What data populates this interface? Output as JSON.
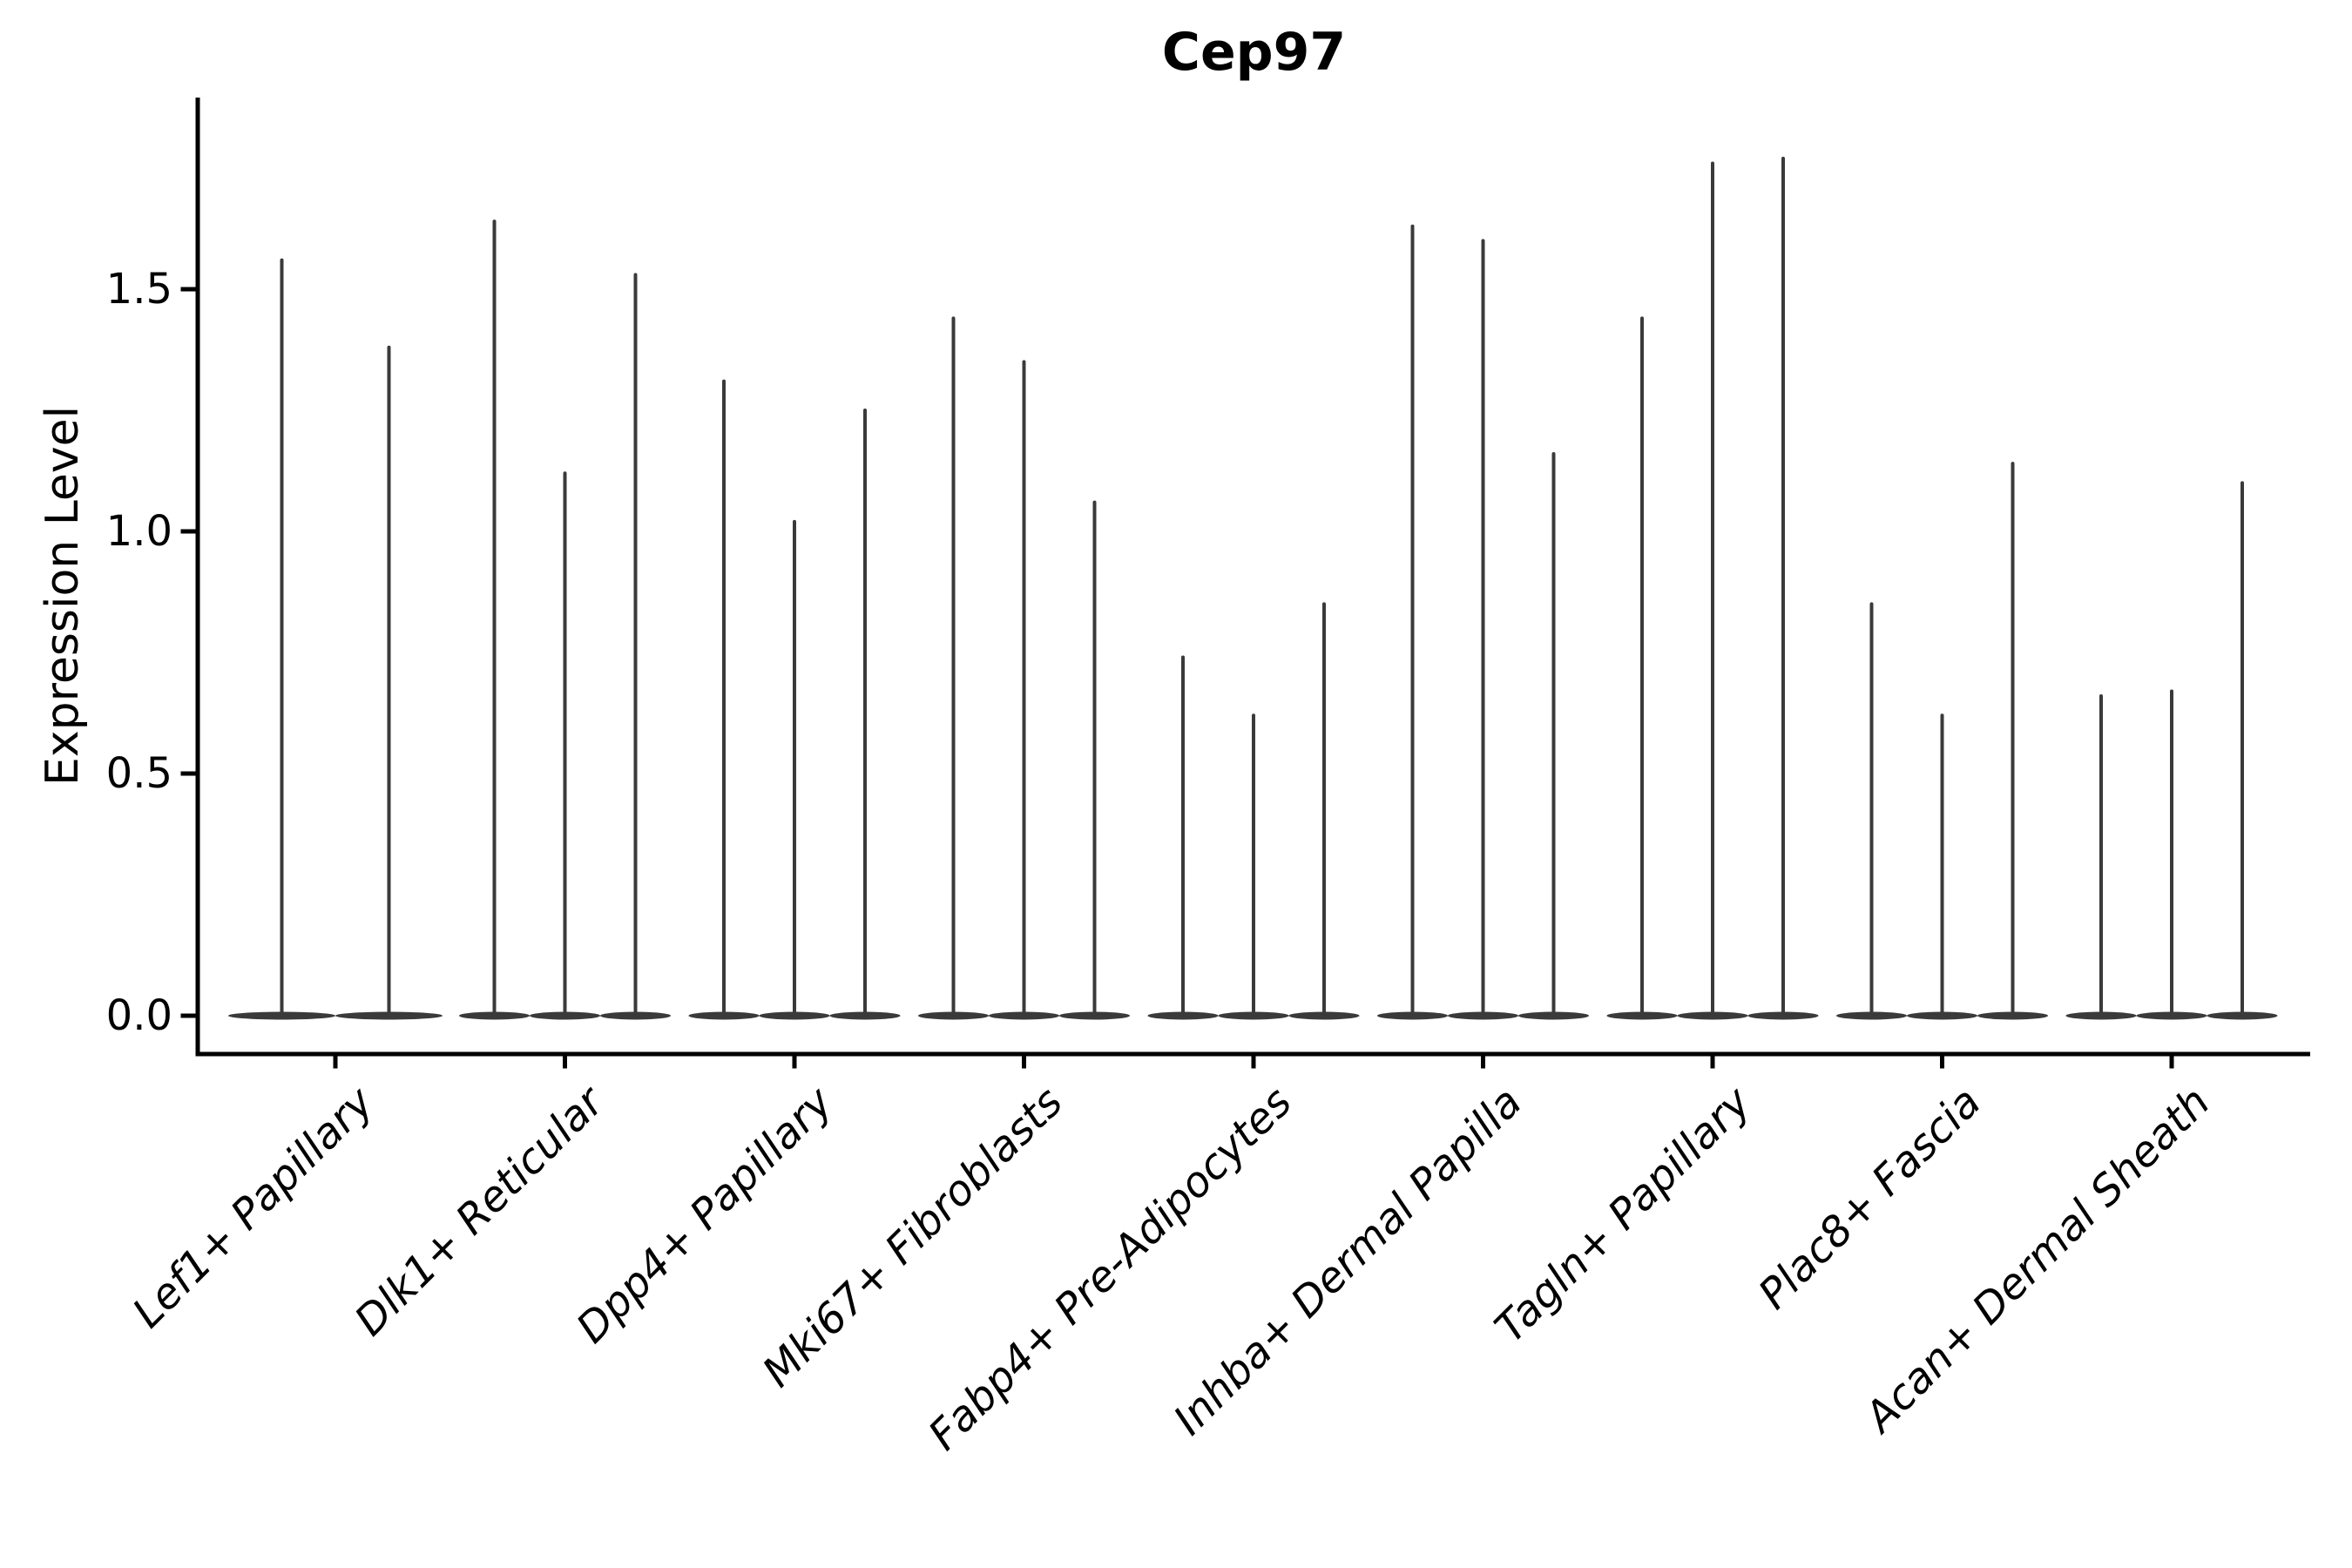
{
  "figure": {
    "background": "#ffffff"
  },
  "chart_data": {
    "type": "violin",
    "title": "Cep97",
    "ylabel": "Expression Level",
    "xlabel": "",
    "grid": false,
    "legend": "none",
    "ytick_labels": [
      "0.0",
      "0.5",
      "1.0",
      "1.5"
    ],
    "ytick_values": [
      0.0,
      0.5,
      1.0,
      1.5
    ],
    "ylim": [
      -0.08,
      1.9
    ],
    "categories": [
      "Lef1+ Papillary",
      "Dlk1+ Reticular",
      "Dpp4+ Papillary",
      "Mki67+ Fibroblasts",
      "Fabp4+ Pre-Adipocytes",
      "Inhba+ Dermal Papilla",
      "Tagln+ Papillary",
      "Plac8+ Fascia",
      "Acan+ Dermal Sheath"
    ],
    "series": [
      {
        "category": "Lef1+ Papillary",
        "violin_max_values": [
          1.56,
          1.38
        ]
      },
      {
        "category": "Dlk1+ Reticular",
        "violin_max_values": [
          1.64,
          1.12,
          1.53
        ]
      },
      {
        "category": "Dpp4+ Papillary",
        "violin_max_values": [
          1.31,
          1.02,
          1.25
        ]
      },
      {
        "category": "Mki67+ Fibroblasts",
        "violin_max_values": [
          1.44,
          1.35,
          1.06
        ]
      },
      {
        "category": "Fabp4+ Pre-Adipocytes",
        "violin_max_values": [
          0.74,
          0.62,
          0.85
        ]
      },
      {
        "category": "Inhba+ Dermal Papilla",
        "violin_max_values": [
          1.63,
          1.6,
          1.16
        ]
      },
      {
        "category": "Tagln+ Papillary",
        "violin_max_values": [
          1.44,
          1.76,
          1.77
        ]
      },
      {
        "category": "Plac8+ Fascia",
        "violin_max_values": [
          0.85,
          0.62,
          1.14
        ]
      },
      {
        "category": "Acan+ Dermal Sheath",
        "violin_max_values": [
          0.66,
          0.67,
          1.1
        ]
      }
    ],
    "violin_color": "#3a3a3a",
    "axis_color": "#000000",
    "text_color": "#000000"
  }
}
